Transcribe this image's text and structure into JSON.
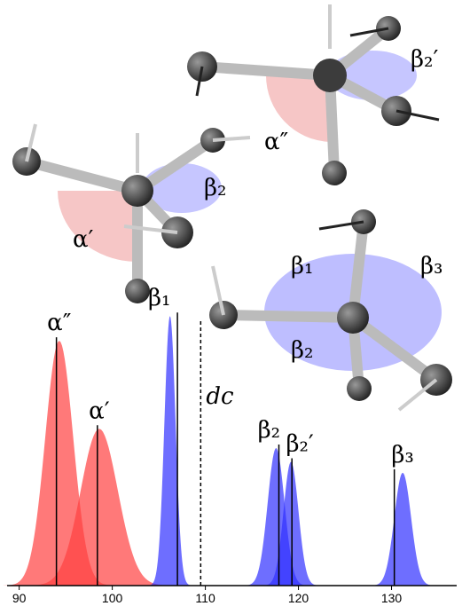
{
  "chart_data": {
    "type": "density",
    "xlim": [
      88.7,
      137
    ],
    "xticks": [
      90,
      100,
      110,
      120,
      130
    ],
    "ylim": [
      0,
      1
    ],
    "peaks": [
      {
        "name": "α″",
        "color": "#ff4040",
        "center": 94.3,
        "height": 0.89,
        "sigma": 1.5,
        "line": 94
      },
      {
        "name": "α′",
        "color": "#ff4040",
        "center": 98.6,
        "height": 0.57,
        "sigma": 2.0,
        "line": 98.4
      },
      {
        "name": "β₁",
        "color": "#3030ff",
        "center": 106.2,
        "height": 0.98,
        "sigma": 0.6,
        "line": 107
      },
      {
        "name": "β₂",
        "color": "#3030ff",
        "center": 117.6,
        "height": 0.5,
        "sigma": 0.9,
        "line": 117.9
      },
      {
        "name": "β₂′",
        "color": "#3030ff",
        "center": 119.2,
        "height": 0.45,
        "sigma": 0.8,
        "line": 119.3
      },
      {
        "name": "β₃",
        "color": "#3030ff",
        "center": 131.2,
        "height": 0.41,
        "sigma": 0.9,
        "line": 130.3
      }
    ],
    "marker": {
      "label": "dc",
      "x": 109.5
    }
  },
  "molecules": {
    "labels": [
      "α″",
      "β₂′",
      "β₂",
      "α′",
      "β₁",
      "β₃",
      "β₂"
    ]
  }
}
